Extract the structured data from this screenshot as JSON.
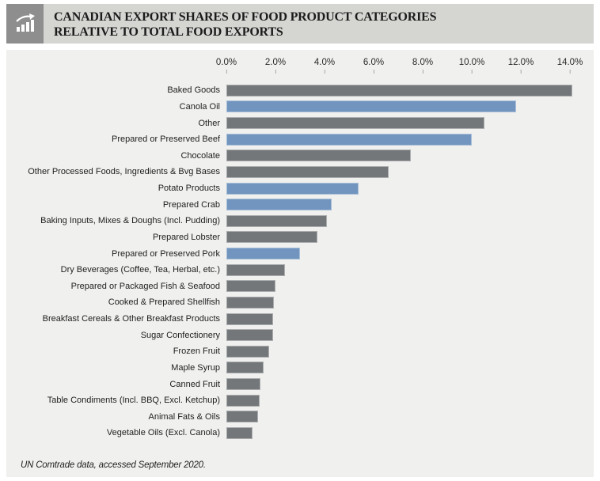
{
  "header": {
    "title_line1": "CANADIAN EXPORT SHARES OF FOOD PRODUCT CATEGORIES",
    "title_line2": "RELATIVE TO TOTAL FOOD EXPORTS",
    "icon": "bar-chart-rising-icon"
  },
  "chart_data": {
    "type": "bar",
    "orientation": "horizontal",
    "title": "Canadian Export Shares of Food Product Categories Relative to Total Food Exports",
    "xlabel": "",
    "ylabel": "",
    "xlim": [
      0,
      14
    ],
    "grid": false,
    "legend": false,
    "x_ticks": [
      "0.0%",
      "2.0%",
      "4.0%",
      "6.0%",
      "8.0%",
      "10.0%",
      "12.0%",
      "14.0%"
    ],
    "unit": "percent",
    "items": [
      {
        "label": "Baked Goods",
        "value": 14.1,
        "color": "gray"
      },
      {
        "label": "Canola Oil",
        "value": 11.8,
        "color": "blue"
      },
      {
        "label": "Other",
        "value": 10.5,
        "color": "gray"
      },
      {
        "label": "Prepared or Preserved Beef",
        "value": 10.0,
        "color": "blue"
      },
      {
        "label": "Chocolate",
        "value": 7.5,
        "color": "gray"
      },
      {
        "label": "Other Processed Foods, Ingredients & Bvg Bases",
        "value": 6.6,
        "color": "gray"
      },
      {
        "label": "Potato Products",
        "value": 5.4,
        "color": "blue"
      },
      {
        "label": "Prepared Crab",
        "value": 4.3,
        "color": "blue"
      },
      {
        "label": "Baking Inputs, Mixes & Doughs (Incl. Pudding)",
        "value": 4.1,
        "color": "gray"
      },
      {
        "label": "Prepared Lobster",
        "value": 3.7,
        "color": "gray"
      },
      {
        "label": "Prepared or Preserved Pork",
        "value": 3.0,
        "color": "blue"
      },
      {
        "label": "Dry Beverages (Coffee, Tea, Herbal, etc.)",
        "value": 2.4,
        "color": "gray"
      },
      {
        "label": "Prepared or Packaged Fish & Seafood",
        "value": 2.0,
        "color": "gray"
      },
      {
        "label": "Cooked & Prepared Shellfish",
        "value": 1.95,
        "color": "gray"
      },
      {
        "label": "Breakfast Cereals & Other Breakfast Products",
        "value": 1.9,
        "color": "gray"
      },
      {
        "label": "Sugar Confectionery",
        "value": 1.9,
        "color": "gray"
      },
      {
        "label": "Frozen Fruit",
        "value": 1.75,
        "color": "gray"
      },
      {
        "label": "Maple Syrup",
        "value": 1.5,
        "color": "gray"
      },
      {
        "label": "Canned Fruit",
        "value": 1.4,
        "color": "gray"
      },
      {
        "label": "Table Condiments (Incl. BBQ, Excl. Ketchup)",
        "value": 1.35,
        "color": "gray"
      },
      {
        "label": "Animal Fats & Oils",
        "value": 1.3,
        "color": "gray"
      },
      {
        "label": "Vegetable Oils (Excl. Canola)",
        "value": 1.05,
        "color": "gray"
      }
    ]
  },
  "footer": {
    "source": "UN Comtrade data, accessed September 2020."
  },
  "colors": {
    "bar_gray": "#74777a",
    "bar_blue": "#7195be",
    "panel_bg": "#f0f0ee",
    "header_bg": "#d5d5d2",
    "icon_bg": "#8e8e8e"
  }
}
